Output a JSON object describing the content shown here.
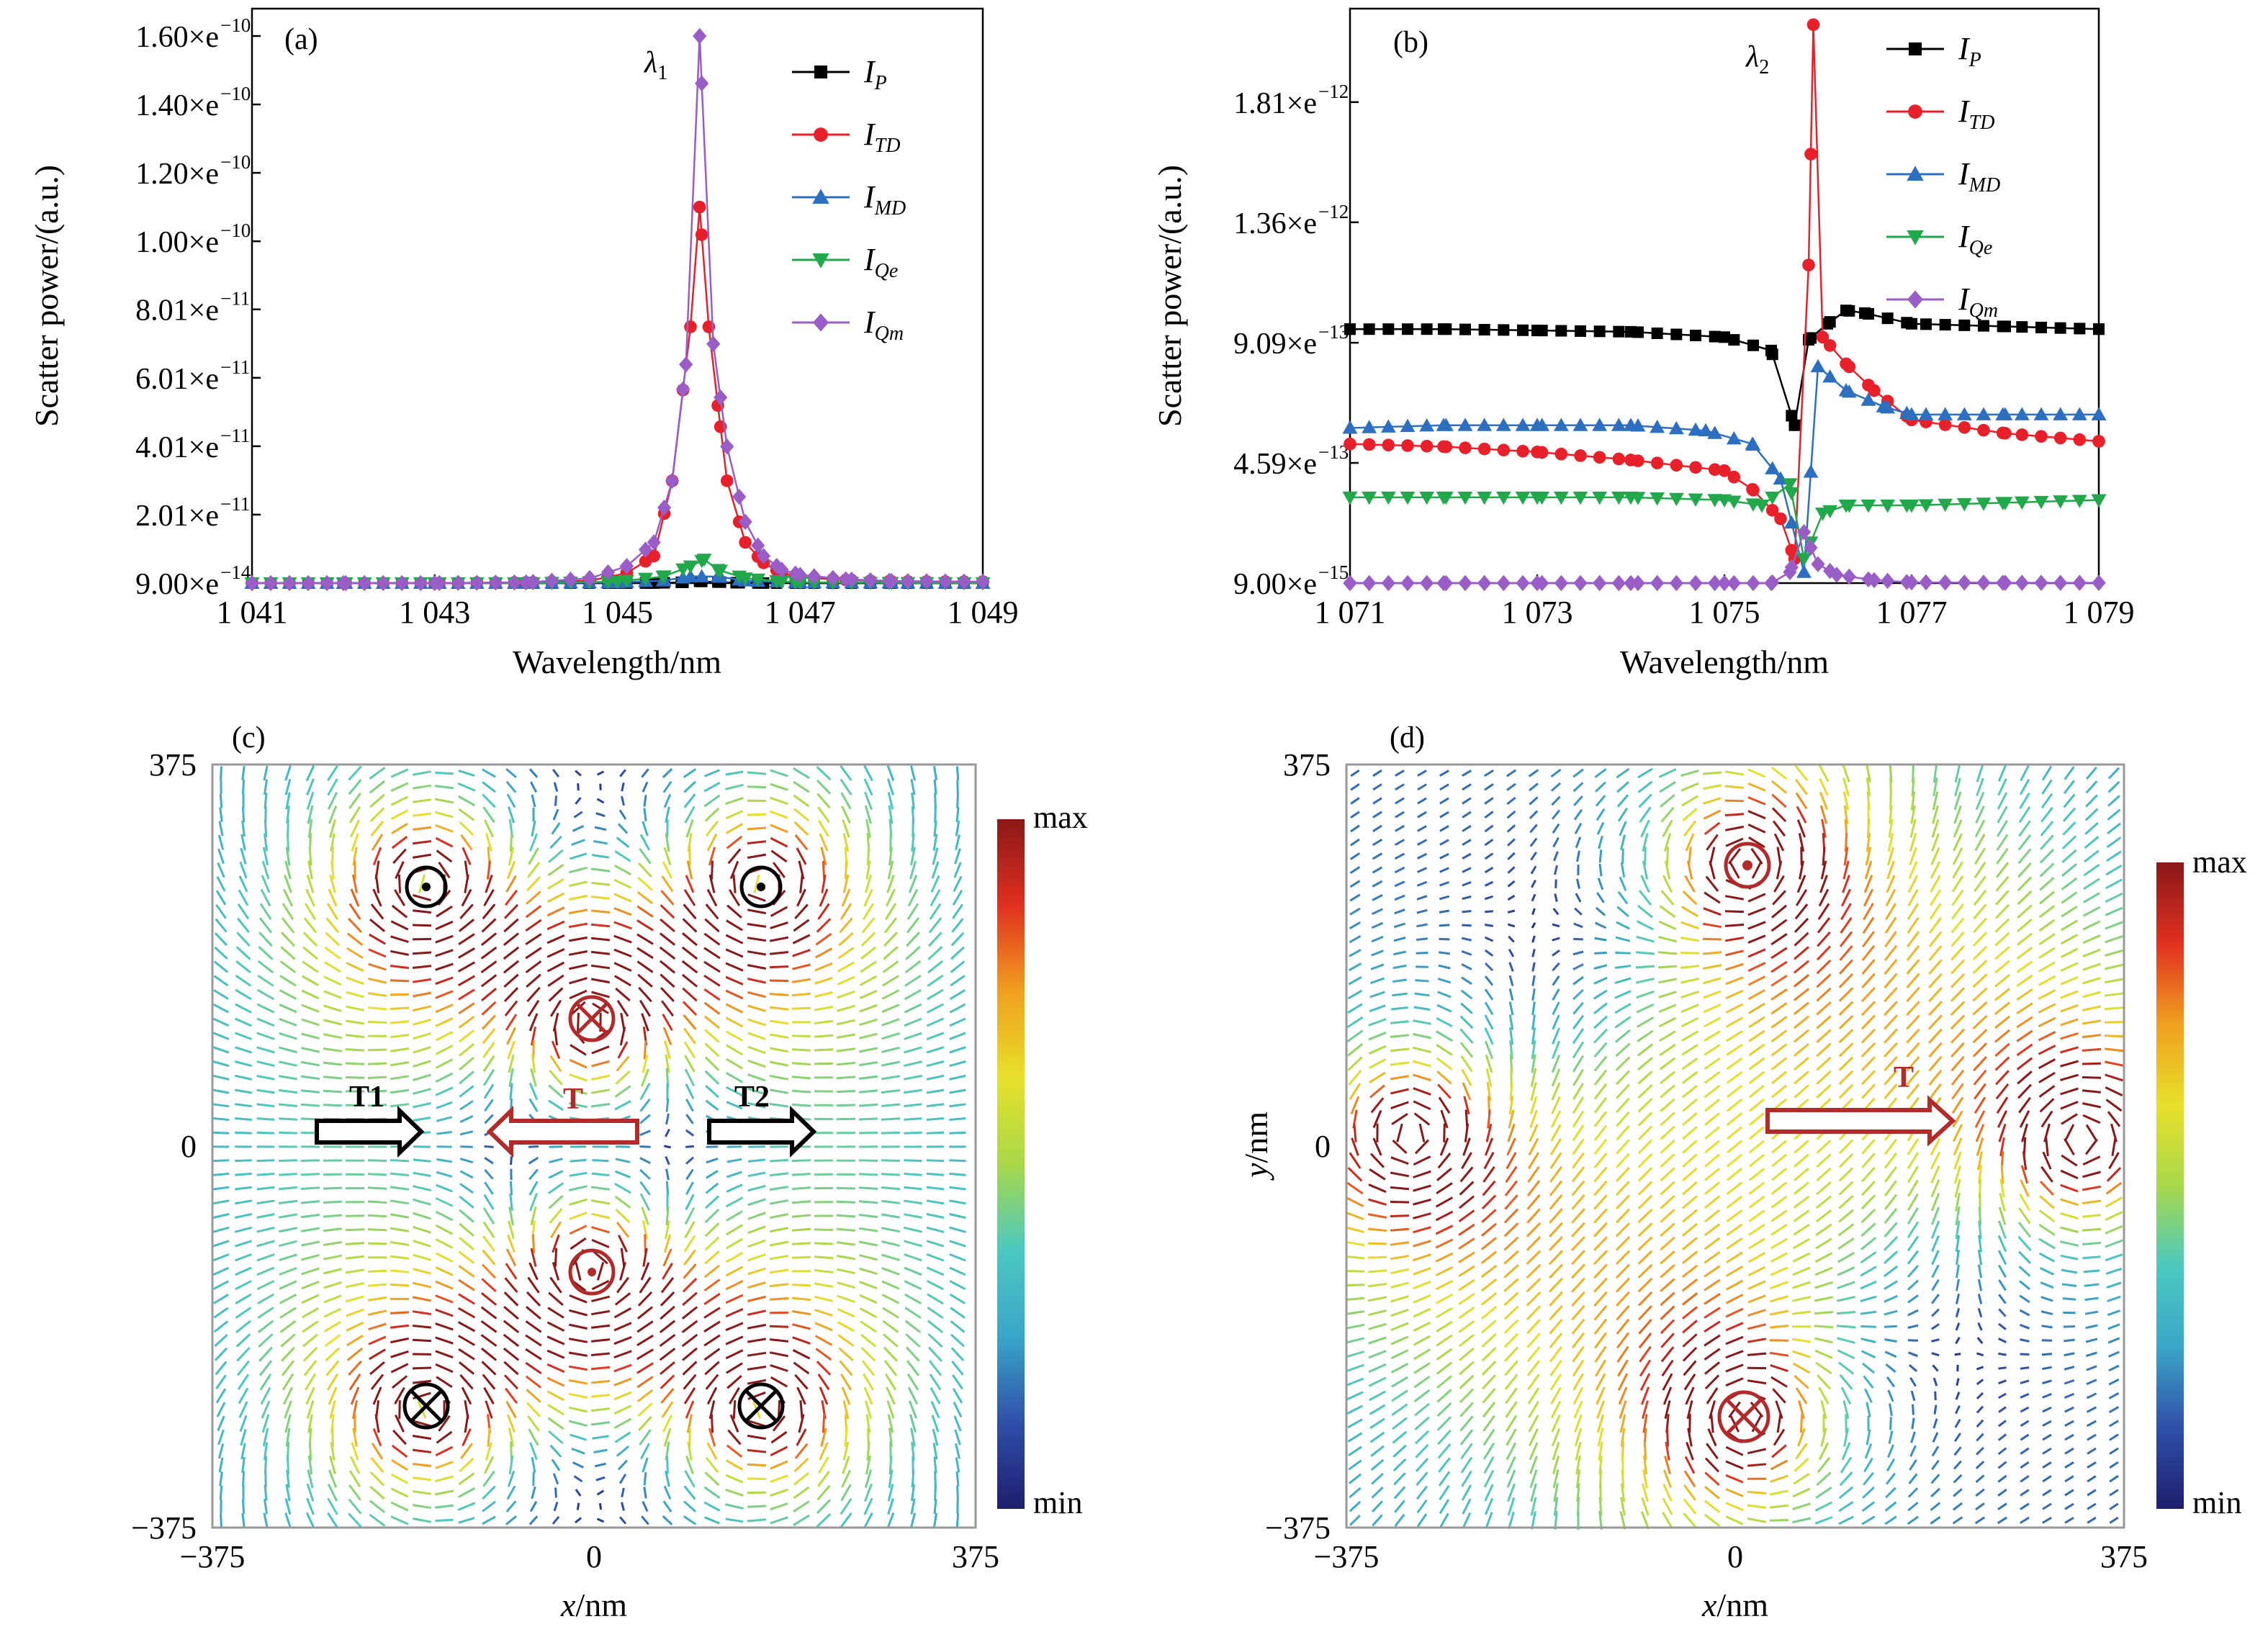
{
  "panels": {
    "a": {
      "tag": "(a)",
      "peak_label": "λ",
      "peak_sub": "1"
    },
    "b": {
      "tag": "(b)",
      "peak_label": "λ",
      "peak_sub": "2"
    },
    "c": {
      "tag": "(c)"
    },
    "d": {
      "tag": "(d)"
    }
  },
  "legend": [
    {
      "main": "I",
      "sub": "P",
      "color": "#000000",
      "marker": "square"
    },
    {
      "main": "I",
      "sub": "TD",
      "color": "#e8202a",
      "marker": "circle"
    },
    {
      "main": "I",
      "sub": "MD",
      "color": "#2c6fc0",
      "marker": "triangle-up"
    },
    {
      "main": "I",
      "sub": "Qe",
      "color": "#21a84a",
      "marker": "triangle-down"
    },
    {
      "main": "I",
      "sub": "Qm",
      "color": "#9a5cc6",
      "marker": "diamond"
    }
  ],
  "colorbar": {
    "max_label": "max",
    "min_label": "min",
    "stops": [
      "#1e1e6e",
      "#2f4fa8",
      "#3aa6c8",
      "#4cc8c0",
      "#a8d84a",
      "#e8e02a",
      "#f0a020",
      "#e03020",
      "#8a1818"
    ]
  },
  "annotations": {
    "c": {
      "t1": "T1",
      "t": "T",
      "t2": "T2"
    },
    "d": {
      "t": "T"
    }
  },
  "chart_data": [
    {
      "id": "a",
      "type": "line",
      "xlabel": "Wavelength/nm",
      "ylabel": "Scatter power/(a.u.)",
      "xlim": [
        1041,
        1049
      ],
      "ylim": [
        9e-14,
        1.68e-10
      ],
      "xticks": [
        1041,
        1043,
        1045,
        1047,
        1049
      ],
      "xtick_labels": [
        "1 041",
        "1 043",
        "1 045",
        "1 047",
        "1 049"
      ],
      "yticks": [
        9e-14,
        2.01e-11,
        4.01e-11,
        6.01e-11,
        8.01e-11,
        1e-10,
        1.2e-10,
        1.4e-10,
        1.6e-10
      ],
      "ytick_main": [
        "9.00×e",
        "2.01×e",
        "4.01×e",
        "6.01×e",
        "8.01×e",
        "1.00×e",
        "1.20×e",
        "1.40×e",
        "1.60×e"
      ],
      "ytick_exp": [
        "−14",
        "−11",
        "−11",
        "−11",
        "−11",
        "−10",
        "−10",
        "−10",
        "−10"
      ],
      "peak_x": 1045.9,
      "series": [
        {
          "name": "I_P",
          "x": [
            1041,
            1042,
            1043,
            1044,
            1045,
            1045.4,
            1045.7,
            1045.9,
            1046.1,
            1046.3,
            1046.6,
            1047,
            1048,
            1049
          ],
          "y": [
            9e-14,
            9e-14,
            9e-14,
            9e-14,
            9e-14,
            1e-13,
            3e-13,
            6e-13,
            4e-13,
            2e-13,
            1e-13,
            9e-14,
            9e-14,
            9e-14
          ]
        },
        {
          "name": "I_TD",
          "x": [
            1041,
            1042,
            1043,
            1044,
            1044.7,
            1045.1,
            1045.4,
            1045.6,
            1045.8,
            1045.9,
            1046.0,
            1046.1,
            1046.2,
            1046.4,
            1046.6,
            1046.8,
            1047,
            1047.5,
            1048,
            1049
          ],
          "y": [
            9e-14,
            9e-14,
            1e-13,
            3e-13,
            8e-13,
            3e-12,
            8e-12,
            3e-11,
            7.5e-11,
            1.1e-10,
            7.5e-11,
            5.2e-11,
            3e-11,
            1.2e-11,
            6e-12,
            3e-12,
            1.8e-12,
            1e-12,
            6e-13,
            5e-13
          ]
        },
        {
          "name": "I_MD",
          "x": [
            1041,
            1042,
            1043,
            1044,
            1045,
            1045.5,
            1045.8,
            1046.1,
            1046.4,
            1047,
            1048,
            1049
          ],
          "y": [
            9e-14,
            9e-14,
            9e-14,
            1e-13,
            3e-13,
            8e-13,
            2e-12,
            2e-12,
            8e-13,
            3e-13,
            2e-13,
            1e-13
          ]
        },
        {
          "name": "I_Qe",
          "x": [
            1041,
            1042,
            1043,
            1044,
            1045,
            1045.5,
            1045.8,
            1045.95,
            1046.1,
            1046.4,
            1046.8,
            1047,
            1048,
            1049
          ],
          "y": [
            9e-14,
            9e-14,
            9e-14,
            1e-13,
            5e-13,
            2e-12,
            5e-12,
            7e-12,
            4e-12,
            1.5e-12,
            6e-13,
            3e-13,
            2e-13,
            1e-13
          ]
        },
        {
          "name": "I_Qm",
          "x": [
            1041,
            1042,
            1043,
            1044,
            1044.7,
            1045.1,
            1045.4,
            1045.6,
            1045.75,
            1045.9,
            1046.05,
            1046.2,
            1046.4,
            1046.6,
            1046.8,
            1047,
            1047.5,
            1048,
            1049
          ],
          "y": [
            9e-14,
            9e-14,
            1e-13,
            3e-13,
            1.5e-12,
            5e-12,
            1.2e-11,
            3e-11,
            6.4e-11,
            1.6e-10,
            7e-11,
            4e-11,
            1.8e-11,
            8e-12,
            4e-12,
            2.5e-12,
            1.2e-12,
            7e-13,
            5e-13
          ]
        }
      ]
    },
    {
      "id": "b",
      "type": "line",
      "xlabel": "Wavelength/nm",
      "ylabel": "Scatter power/(a.u.)",
      "xlim": [
        1071,
        1079
      ],
      "ylim": [
        9e-15,
        2.16e-12
      ],
      "xticks": [
        1071,
        1073,
        1075,
        1077,
        1079
      ],
      "xtick_labels": [
        "1 071",
        "1 073",
        "1 075",
        "1 077",
        "1 079"
      ],
      "yticks": [
        9e-15,
        4.59e-13,
        9.09e-13,
        1.36e-12,
        1.81e-12
      ],
      "ytick_main": [
        "9.00×e",
        "4.59×e",
        "9.09×e",
        "1.36×e",
        "1.81×e"
      ],
      "ytick_exp": [
        "−15",
        "−13",
        "−13",
        "−12",
        "−12"
      ],
      "peak_x": 1075.95,
      "series": [
        {
          "name": "I_P",
          "x": [
            1071,
            1072,
            1073,
            1074,
            1075,
            1075.5,
            1075.75,
            1075.9,
            1076.1,
            1076.3,
            1076.5,
            1077,
            1078,
            1079
          ],
          "y": [
            9.6e-13,
            9.6e-13,
            9.55e-13,
            9.5e-13,
            9.3e-13,
            8.8e-13,
            6e-13,
            9.2e-13,
            9.8e-13,
            1.03e-12,
            1.02e-12,
            9.8e-13,
            9.7e-13,
            9.6e-13
          ]
        },
        {
          "name": "I_TD",
          "x": [
            1071,
            1072,
            1073,
            1074,
            1075,
            1075.3,
            1075.6,
            1075.75,
            1075.9,
            1075.95,
            1076.05,
            1076.3,
            1076.6,
            1077,
            1078,
            1079
          ],
          "y": [
            5.3e-13,
            5.2e-13,
            5e-13,
            4.7e-13,
            4.3e-13,
            3.6e-13,
            2.5e-13,
            1e-13,
            1.2e-12,
            2.1e-12,
            9.3e-13,
            8.3e-13,
            7.3e-13,
            6.2e-13,
            5.7e-13,
            5.4e-13
          ]
        },
        {
          "name": "I_MD",
          "x": [
            1071,
            1072,
            1073,
            1074,
            1074.8,
            1075.3,
            1075.6,
            1075.85,
            1076.0,
            1076.3,
            1076.7,
            1077,
            1078,
            1079
          ],
          "y": [
            5.9e-13,
            6e-13,
            6e-13,
            6e-13,
            5.8e-13,
            5.3e-13,
            4e-13,
            5e-14,
            8.2e-13,
            7.3e-13,
            6.7e-13,
            6.4e-13,
            6.4e-13,
            6.4e-13
          ]
        },
        {
          "name": "I_Qe",
          "x": [
            1071,
            1072,
            1073,
            1074,
            1075,
            1075.4,
            1075.7,
            1075.85,
            1076.05,
            1076.3,
            1077,
            1078,
            1079
          ],
          "y": [
            3.3e-13,
            3.3e-13,
            3.3e-13,
            3.3e-13,
            3.2e-13,
            3e-13,
            3.8e-13,
            1e-13,
            2.7e-13,
            3e-13,
            3e-13,
            3.1e-13,
            3.2e-13
          ]
        },
        {
          "name": "I_Qm",
          "x": [
            1071,
            1072,
            1073,
            1074,
            1075,
            1075.5,
            1075.7,
            1075.85,
            1076.0,
            1076.2,
            1076.6,
            1077,
            1078,
            1079
          ],
          "y": [
            9e-15,
            9e-15,
            9e-15,
            9e-15,
            9e-15,
            9e-15,
            5e-14,
            2e-13,
            8e-14,
            4e-14,
            2e-14,
            1.2e-14,
            1e-14,
            1e-14
          ]
        }
      ]
    },
    {
      "id": "c",
      "type": "heatmap",
      "xlabel_main": "x",
      "xlabel_unit": "/nm",
      "xlim": [
        -375,
        375
      ],
      "ylim": [
        -375,
        375
      ],
      "xticks": [
        -375,
        0,
        375
      ],
      "xtick_labels": [
        "−375",
        "0",
        "375"
      ],
      "yticks": [
        375,
        0,
        -375
      ],
      "ytick_labels": [
        "375",
        "0",
        "−375"
      ]
    },
    {
      "id": "d",
      "type": "heatmap",
      "xlabel_main": "x",
      "xlabel_unit": "/nm",
      "ylabel_main": "y",
      "ylabel_unit": "/nm",
      "xlim": [
        -375,
        375
      ],
      "ylim": [
        -375,
        375
      ],
      "xticks": [
        -375,
        0,
        375
      ],
      "xtick_labels": [
        "−375",
        "0",
        "375"
      ],
      "yticks": [
        375,
        0,
        -375
      ],
      "ytick_labels": [
        "375",
        "0",
        "−375"
      ]
    }
  ]
}
